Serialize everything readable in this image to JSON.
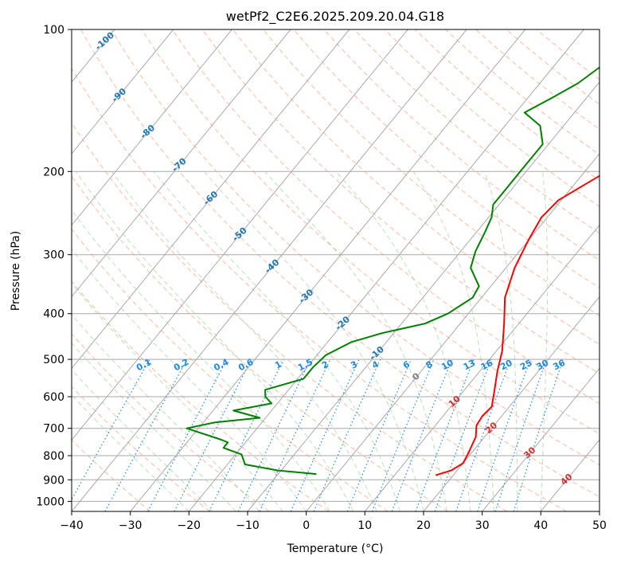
{
  "chart_data": {
    "type": "line",
    "title": "wetPf2_C2E6.2025.209.20.04.G18",
    "xlabel": "Temperature (°C)",
    "ylabel": "Pressure (hPa)",
    "xlim": [
      -40,
      50
    ],
    "ylim": [
      1050,
      100
    ],
    "y_scale": "log",
    "grid": true,
    "x_ticks": [
      "−40",
      "−30",
      "−20",
      "−10",
      "0",
      "10",
      "20",
      "30",
      "40",
      "50"
    ],
    "x_tick_values": [
      -40,
      -30,
      -20,
      -10,
      0,
      10,
      20,
      30,
      40,
      50
    ],
    "y_ticks": [
      "100",
      "200",
      "300",
      "400",
      "500",
      "600",
      "700",
      "800",
      "900",
      "1000"
    ],
    "y_tick_values": [
      100,
      200,
      300,
      400,
      500,
      600,
      700,
      800,
      900,
      1000
    ],
    "isotherm_labels": [
      "-100",
      "-90",
      "-80",
      "-70",
      "-60",
      "-50",
      "-40",
      "-30",
      "-20",
      "-10",
      "0",
      "10",
      "20",
      "30",
      "40"
    ],
    "isotherm_label_values": [
      -100,
      -90,
      -80,
      -70,
      -60,
      -50,
      -40,
      -30,
      -20,
      -10,
      0,
      10,
      20,
      30,
      40
    ],
    "mixing_ratio_labels": [
      "0.1",
      "0.2",
      "0.4",
      "0.6",
      "1",
      "1.5",
      "2",
      "3",
      "4",
      "6",
      "8",
      "10",
      "13",
      "16",
      "20",
      "25",
      "30",
      "36"
    ],
    "mixing_ratio_values": [
      0.1,
      0.2,
      0.4,
      0.6,
      1,
      1.5,
      2,
      3,
      4,
      6,
      8,
      10,
      13,
      16,
      20,
      25,
      30,
      36
    ],
    "series": [
      {
        "color": "#ff0000",
        "points": [
          [
            17.0,
            880
          ],
          [
            19.0,
            860
          ],
          [
            20.0,
            830
          ],
          [
            19.5,
            790
          ],
          [
            18.5,
            730
          ],
          [
            17.0,
            690
          ],
          [
            16.7,
            660
          ],
          [
            17.0,
            630
          ],
          [
            15.5,
            590
          ],
          [
            13.0,
            530
          ],
          [
            11.0,
            480
          ],
          [
            7.5,
            420
          ],
          [
            4.0,
            370
          ],
          [
            1.5,
            320
          ],
          [
            0.0,
            280
          ],
          [
            -1.0,
            250
          ],
          [
            -0.5,
            230
          ],
          [
            3.0,
            205
          ],
          [
            7.0,
            180
          ],
          [
            11.0,
            160
          ],
          [
            12.5,
            145
          ],
          [
            12.0,
            130
          ],
          [
            12.0,
            120
          ],
          [
            15.5,
            110
          ],
          [
            18.5,
            100
          ]
        ]
      },
      {
        "color": "#008000",
        "points": [
          [
            -3.5,
            875
          ],
          [
            -10.5,
            860
          ],
          [
            -17.0,
            835
          ],
          [
            -19.0,
            795
          ],
          [
            -23.0,
            770
          ],
          [
            -23.0,
            750
          ],
          [
            -24.5,
            740
          ],
          [
            -32.0,
            700
          ],
          [
            -28.0,
            680
          ],
          [
            -21.0,
            665
          ],
          [
            -26.5,
            642
          ],
          [
            -21.0,
            620
          ],
          [
            -23.0,
            600
          ],
          [
            -24.0,
            580
          ],
          [
            -19.0,
            550
          ],
          [
            -19.0,
            520
          ],
          [
            -18.5,
            490
          ],
          [
            -16.0,
            460
          ],
          [
            -12.0,
            440
          ],
          [
            -6.0,
            420
          ],
          [
            -3.5,
            400
          ],
          [
            -1.5,
            370
          ],
          [
            -2.0,
            350
          ],
          [
            -6.0,
            320
          ],
          [
            -7.5,
            295
          ],
          [
            -8.5,
            270
          ],
          [
            -9.5,
            250
          ],
          [
            -11.0,
            235
          ],
          [
            -11.0,
            210
          ],
          [
            -11.0,
            195
          ],
          [
            -11.0,
            175
          ],
          [
            -14.0,
            160
          ],
          [
            -18.5,
            150
          ],
          [
            -16.0,
            140
          ],
          [
            -13.5,
            130
          ],
          [
            -12.0,
            120
          ],
          [
            -8.5,
            110
          ],
          [
            -4.5,
            100
          ]
        ]
      }
    ]
  }
}
